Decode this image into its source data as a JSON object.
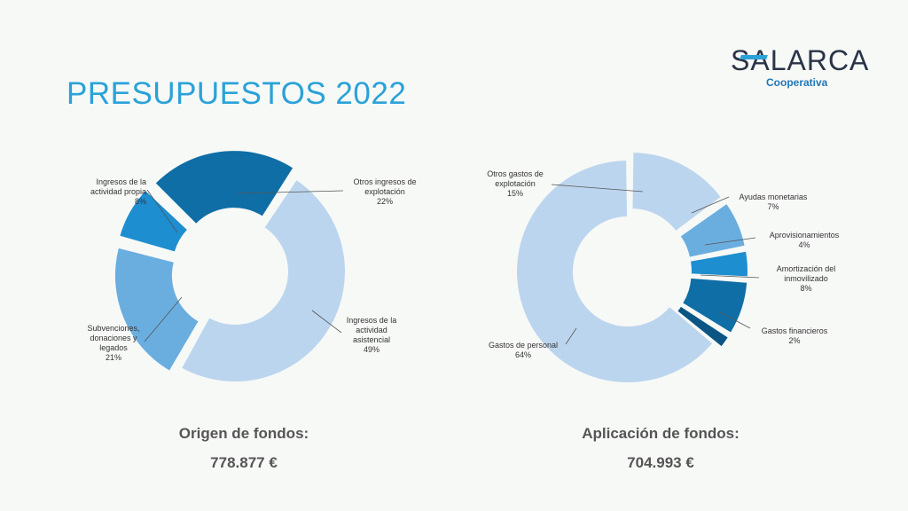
{
  "page": {
    "title": "PRESUPUESTOS 2022"
  },
  "logo": {
    "name": "SALARCA",
    "subtitle": "Cooperativa"
  },
  "colors": {
    "title": "#2aa2d8",
    "slice_light": "#bcd5ee",
    "slice_mid": "#6aaee0",
    "slice_blue": "#1d8ed0",
    "slice_dark": "#0f6ea6",
    "slice_navy": "#0b5585"
  },
  "chart_data": [
    {
      "type": "pie",
      "variant": "donut",
      "title": "",
      "categories": [
        "Ingresos de la actividad asistencial",
        "Subvenciones, donaciones y legados",
        "Ingresos de la actividad propia",
        "Otros ingresos de explotación"
      ],
      "values": [
        49,
        21,
        8,
        22
      ],
      "value_labels": [
        "49%",
        "21%",
        "8%",
        "22%"
      ],
      "caption": "Origen de fondos:",
      "total": "778.877 €"
    },
    {
      "type": "pie",
      "variant": "donut",
      "title": "",
      "categories": [
        "Otros gastos de explotación",
        "Ayudas monetarias",
        "Aprovisionamientos",
        "Amortización del inmovilizado",
        "Gastos financieros",
        "Gastos de personal"
      ],
      "values": [
        15,
        7,
        4,
        8,
        2,
        64
      ],
      "value_labels": [
        "15%",
        "7%",
        "4%",
        "8%",
        "2%",
        "64%"
      ],
      "caption": "Aplicación de fondos:",
      "total": "704.993 €"
    }
  ]
}
